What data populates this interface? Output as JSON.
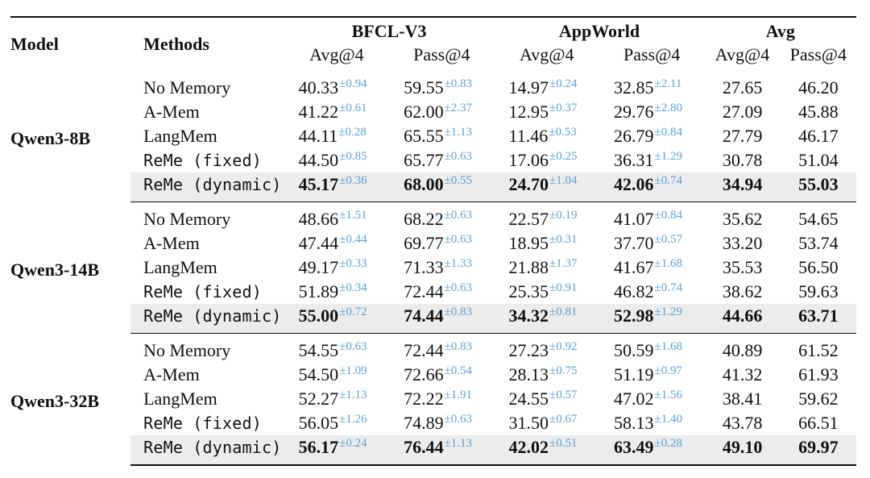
{
  "header": {
    "model": "Model",
    "methods": "Methods",
    "groups": [
      "BFCL-V3",
      "AppWorld",
      "Avg"
    ],
    "metrics": [
      "Avg@4",
      "Pass@4",
      "Avg@4",
      "Pass@4",
      "Avg@4",
      "Pass@4"
    ]
  },
  "colors": {
    "std_text": "#5aa0d6",
    "highlight_row": "#ececec"
  },
  "groups": [
    {
      "model": "Qwen3-8B",
      "rows": [
        {
          "method": "No Memory",
          "mono": false,
          "highlight": false,
          "bfcl_avg": "40.33",
          "bfcl_avg_std": "±0.94",
          "bfcl_pass": "59.55",
          "bfcl_pass_std": "±0.83",
          "app_avg": "14.97",
          "app_avg_std": "±0.24",
          "app_pass": "32.85",
          "app_pass_std": "±2.11",
          "avg_avg": "27.65",
          "avg_pass": "46.20"
        },
        {
          "method": "A-Mem",
          "mono": false,
          "highlight": false,
          "bfcl_avg": "41.22",
          "bfcl_avg_std": "±0.61",
          "bfcl_pass": "62.00",
          "bfcl_pass_std": "±2.37",
          "app_avg": "12.95",
          "app_avg_std": "±0.37",
          "app_pass": "29.76",
          "app_pass_std": "±2.80",
          "avg_avg": "27.09",
          "avg_pass": "45.88"
        },
        {
          "method": "LangMem",
          "mono": false,
          "highlight": false,
          "bfcl_avg": "44.11",
          "bfcl_avg_std": "±0.28",
          "bfcl_pass": "65.55",
          "bfcl_pass_std": "±1.13",
          "app_avg": "11.46",
          "app_avg_std": "±0.53",
          "app_pass": "26.79",
          "app_pass_std": "±0.84",
          "avg_avg": "27.79",
          "avg_pass": "46.17"
        },
        {
          "method": "ReMe (fixed)",
          "mono": true,
          "highlight": false,
          "bfcl_avg": "44.50",
          "bfcl_avg_std": "±0.85",
          "bfcl_pass": "65.77",
          "bfcl_pass_std": "±0.63",
          "app_avg": "17.06",
          "app_avg_std": "±0.25",
          "app_pass": "36.31",
          "app_pass_std": "±1.29",
          "avg_avg": "30.78",
          "avg_pass": "51.04"
        },
        {
          "method": "ReMe (dynamic)",
          "mono": true,
          "highlight": true,
          "bfcl_avg": "45.17",
          "bfcl_avg_std": "±0.36",
          "bfcl_pass": "68.00",
          "bfcl_pass_std": "±0.55",
          "app_avg": "24.70",
          "app_avg_std": "±1.04",
          "app_pass": "42.06",
          "app_pass_std": "±0.74",
          "avg_avg": "34.94",
          "avg_pass": "55.03"
        }
      ]
    },
    {
      "model": "Qwen3-14B",
      "rows": [
        {
          "method": "No Memory",
          "mono": false,
          "highlight": false,
          "bfcl_avg": "48.66",
          "bfcl_avg_std": "±1.51",
          "bfcl_pass": "68.22",
          "bfcl_pass_std": "±0.63",
          "app_avg": "22.57",
          "app_avg_std": "±0.19",
          "app_pass": "41.07",
          "app_pass_std": "±0.84",
          "avg_avg": "35.62",
          "avg_pass": "54.65"
        },
        {
          "method": "A-Mem",
          "mono": false,
          "highlight": false,
          "bfcl_avg": "47.44",
          "bfcl_avg_std": "±0.44",
          "bfcl_pass": "69.77",
          "bfcl_pass_std": "±0.63",
          "app_avg": "18.95",
          "app_avg_std": "±0.31",
          "app_pass": "37.70",
          "app_pass_std": "±0.57",
          "avg_avg": "33.20",
          "avg_pass": "53.74"
        },
        {
          "method": "LangMem",
          "mono": false,
          "highlight": false,
          "bfcl_avg": "49.17",
          "bfcl_avg_std": "±0.33",
          "bfcl_pass": "71.33",
          "bfcl_pass_std": "±1.33",
          "app_avg": "21.88",
          "app_avg_std": "±1.37",
          "app_pass": "41.67",
          "app_pass_std": "±1.68",
          "avg_avg": "35.53",
          "avg_pass": "56.50"
        },
        {
          "method": "ReMe (fixed)",
          "mono": true,
          "highlight": false,
          "bfcl_avg": "51.89",
          "bfcl_avg_std": "±0.34",
          "bfcl_pass": "72.44",
          "bfcl_pass_std": "±0.63",
          "app_avg": "25.35",
          "app_avg_std": "±0.91",
          "app_pass": "46.82",
          "app_pass_std": "±0.74",
          "avg_avg": "38.62",
          "avg_pass": "59.63"
        },
        {
          "method": "ReMe (dynamic)",
          "mono": true,
          "highlight": true,
          "bfcl_avg": "55.00",
          "bfcl_avg_std": "±0.72",
          "bfcl_pass": "74.44",
          "bfcl_pass_std": "±0.83",
          "app_avg": "34.32",
          "app_avg_std": "±0.81",
          "app_pass": "52.98",
          "app_pass_std": "±1.29",
          "avg_avg": "44.66",
          "avg_pass": "63.71"
        }
      ]
    },
    {
      "model": "Qwen3-32B",
      "rows": [
        {
          "method": "No Memory",
          "mono": false,
          "highlight": false,
          "bfcl_avg": "54.55",
          "bfcl_avg_std": "±0.63",
          "bfcl_pass": "72.44",
          "bfcl_pass_std": "±0.83",
          "app_avg": "27.23",
          "app_avg_std": "±0.92",
          "app_pass": "50.59",
          "app_pass_std": "±1.68",
          "avg_avg": "40.89",
          "avg_pass": "61.52"
        },
        {
          "method": "A-Mem",
          "mono": false,
          "highlight": false,
          "bfcl_avg": "54.50",
          "bfcl_avg_std": "±1.09",
          "bfcl_pass": "72.66",
          "bfcl_pass_std": "±0.54",
          "app_avg": "28.13",
          "app_avg_std": "±0.75",
          "app_pass": "51.19",
          "app_pass_std": "±0.97",
          "avg_avg": "41.32",
          "avg_pass": "61.93"
        },
        {
          "method": "LangMem",
          "mono": false,
          "highlight": false,
          "bfcl_avg": "52.27",
          "bfcl_avg_std": "±1.13",
          "bfcl_pass": "72.22",
          "bfcl_pass_std": "±1.91",
          "app_avg": "24.55",
          "app_avg_std": "±0.57",
          "app_pass": "47.02",
          "app_pass_std": "±1.56",
          "avg_avg": "38.41",
          "avg_pass": "59.62"
        },
        {
          "method": "ReMe (fixed)",
          "mono": true,
          "highlight": false,
          "bfcl_avg": "56.05",
          "bfcl_avg_std": "±1.26",
          "bfcl_pass": "74.89",
          "bfcl_pass_std": "±0.63",
          "app_avg": "31.50",
          "app_avg_std": "±0.67",
          "app_pass": "58.13",
          "app_pass_std": "±1.40",
          "avg_avg": "43.78",
          "avg_pass": "66.51"
        },
        {
          "method": "ReMe (dynamic)",
          "mono": true,
          "highlight": true,
          "bfcl_avg": "56.17",
          "bfcl_avg_std": "±0.24",
          "bfcl_pass": "76.44",
          "bfcl_pass_std": "±1.13",
          "app_avg": "42.02",
          "app_avg_std": "±0.51",
          "app_pass": "63.49",
          "app_pass_std": "±0.28",
          "avg_avg": "49.10",
          "avg_pass": "69.97"
        }
      ]
    }
  ]
}
